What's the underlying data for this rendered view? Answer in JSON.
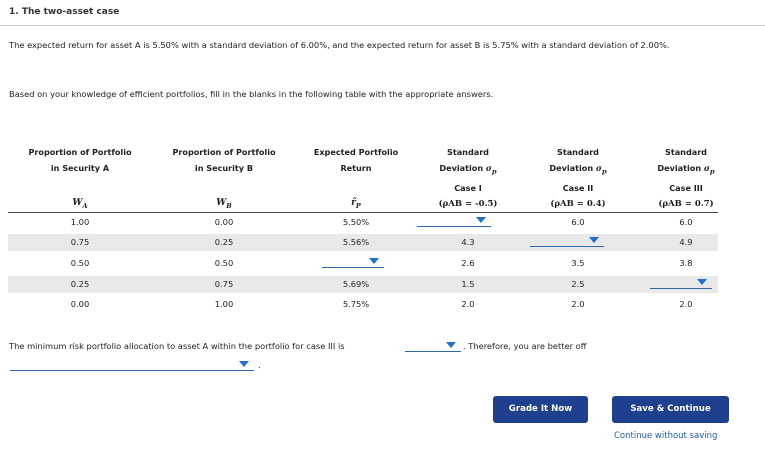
{
  "page": {
    "title": "1. The two-asset case",
    "intro": "The expected return for asset A is 5.50% with a standard deviation of 6.00%, and the expected return for asset B is 5.75% with a standard deviation of 2.00%.",
    "instruction": "Based on your knowledge of efficient portfolios, fill in the blanks in the following table with the appropriate answers."
  },
  "table": {
    "headers": {
      "propA": [
        "Proportion of Portfolio",
        "in Security A"
      ],
      "propB": [
        "Proportion of Portfolio",
        "in Security B"
      ],
      "expret": [
        "Expected Portfolio",
        "Return"
      ],
      "sd_label": [
        "Standard",
        "Deviation"
      ],
      "case1": "Case I",
      "case2": "Case II",
      "case3": "Case III"
    },
    "symbols": {
      "wa": "W",
      "wa_sub": "A",
      "wb": "W",
      "wb_sub": "B",
      "rp": "r̂",
      "rp_sub": "P",
      "sigma": "σ",
      "sigma_sub": "p",
      "rho1": "(ρAB = -0.5)",
      "rho2": "(ρAB = 0.4)",
      "rho3": "(ρAB = 0.7)"
    },
    "rows": [
      {
        "wa": "1.00",
        "wb": "0.00",
        "ret": "5.50%",
        "c1": "",
        "c2": "6.0",
        "c3": "6.0"
      },
      {
        "wa": "0.75",
        "wb": "0.25",
        "ret": "5.56%",
        "c1": "4.3",
        "c2": "",
        "c3": "4.9"
      },
      {
        "wa": "0.50",
        "wb": "0.50",
        "ret": "",
        "c1": "2.6",
        "c2": "3.5",
        "c3": "3.8"
      },
      {
        "wa": "0.25",
        "wb": "0.75",
        "ret": "5.69%",
        "c1": "1.5",
        "c2": "2.5",
        "c3": ""
      },
      {
        "wa": "0.00",
        "wb": "1.00",
        "ret": "5.75%",
        "c1": "2.0",
        "c2": "2.0",
        "c3": "2.0"
      }
    ]
  },
  "footer_text": {
    "before": "The minimum risk portfolio allocation to asset A within the portfolio for case III is",
    "after": ". Therefore, you are better off",
    "period": "."
  },
  "buttons": {
    "grade": "Grade It Now",
    "save": "Save & Continue",
    "continue": "Continue without saving"
  },
  "colors": {
    "button_bg": "#1f3f8f",
    "dropdown_accent": "#1f6fcf",
    "row_shade": "#e9e9e9"
  }
}
